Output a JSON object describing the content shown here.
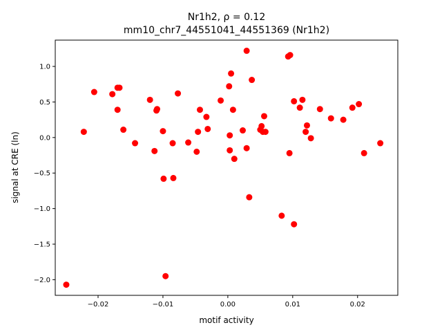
{
  "chart_data": {
    "type": "scatter",
    "title_line1": "Nr1h2, ρ = 0.12",
    "title_line2": "mm10_chr7_44551041_44551369 (Nr1h2)",
    "xlabel": "motif activity",
    "ylabel": "signal at CRE (ln)",
    "xlim": [
      -0.0266,
      0.0262
    ],
    "ylim": [
      -2.22,
      1.37
    ],
    "xticks": [
      -0.02,
      -0.01,
      0.0,
      0.01,
      0.02
    ],
    "xtick_labels": [
      "−0.02",
      "−0.01",
      "0.00",
      "0.01",
      "0.02"
    ],
    "yticks": [
      -2.0,
      -1.5,
      -1.0,
      -0.5,
      0.0,
      0.5,
      1.0
    ],
    "ytick_labels": [
      "−2.0",
      "−1.5",
      "−1.0",
      "−0.5",
      "0.0",
      "0.5",
      "1.0"
    ],
    "grid": false,
    "marker_color": "#ff0000",
    "points": [
      {
        "x": -0.0249,
        "y": -2.07
      },
      {
        "x": -0.0222,
        "y": 0.08
      },
      {
        "x": -0.0206,
        "y": 0.64
      },
      {
        "x": -0.0178,
        "y": 0.61
      },
      {
        "x": -0.017,
        "y": 0.7
      },
      {
        "x": -0.0167,
        "y": 0.7
      },
      {
        "x": -0.017,
        "y": 0.39
      },
      {
        "x": -0.0161,
        "y": 0.11
      },
      {
        "x": -0.0143,
        "y": -0.08
      },
      {
        "x": -0.012,
        "y": 0.53
      },
      {
        "x": -0.0113,
        "y": -0.19
      },
      {
        "x": -0.011,
        "y": 0.38
      },
      {
        "x": -0.0109,
        "y": 0.4
      },
      {
        "x": -0.01,
        "y": 0.09
      },
      {
        "x": -0.0099,
        "y": -0.58
      },
      {
        "x": -0.0096,
        "y": -1.95
      },
      {
        "x": -0.0085,
        "y": -0.08
      },
      {
        "x": -0.0084,
        "y": -0.57
      },
      {
        "x": -0.0077,
        "y": 0.62
      },
      {
        "x": -0.0061,
        "y": -0.07
      },
      {
        "x": -0.0048,
        "y": -0.2
      },
      {
        "x": -0.0046,
        "y": 0.08
      },
      {
        "x": -0.0043,
        "y": 0.39
      },
      {
        "x": -0.0033,
        "y": 0.29
      },
      {
        "x": -0.0031,
        "y": 0.12
      },
      {
        "x": -0.0011,
        "y": 0.52
      },
      {
        "x": 0.0002,
        "y": 0.72
      },
      {
        "x": 0.0003,
        "y": 0.03
      },
      {
        "x": 0.0003,
        "y": -0.18
      },
      {
        "x": 0.0005,
        "y": 0.9
      },
      {
        "x": 0.0008,
        "y": 0.39
      },
      {
        "x": 0.001,
        "y": -0.3
      },
      {
        "x": 0.0023,
        "y": 0.1
      },
      {
        "x": 0.0029,
        "y": 1.22
      },
      {
        "x": 0.0029,
        "y": -0.15
      },
      {
        "x": 0.0033,
        "y": -0.84
      },
      {
        "x": 0.0037,
        "y": 0.81
      },
      {
        "x": 0.005,
        "y": 0.11
      },
      {
        "x": 0.0052,
        "y": 0.16
      },
      {
        "x": 0.0054,
        "y": 0.08
      },
      {
        "x": 0.0056,
        "y": 0.3
      },
      {
        "x": 0.0058,
        "y": 0.08
      },
      {
        "x": 0.0083,
        "y": -1.1
      },
      {
        "x": 0.0093,
        "y": 1.14
      },
      {
        "x": 0.0096,
        "y": 1.16
      },
      {
        "x": 0.0095,
        "y": -0.22
      },
      {
        "x": 0.0102,
        "y": 0.51
      },
      {
        "x": 0.0102,
        "y": -1.22
      },
      {
        "x": 0.0111,
        "y": 0.42
      },
      {
        "x": 0.0115,
        "y": 0.53
      },
      {
        "x": 0.012,
        "y": 0.08
      },
      {
        "x": 0.0122,
        "y": 0.17
      },
      {
        "x": 0.0128,
        "y": -0.01
      },
      {
        "x": 0.0142,
        "y": 0.4
      },
      {
        "x": 0.0159,
        "y": 0.27
      },
      {
        "x": 0.0178,
        "y": 0.25
      },
      {
        "x": 0.0192,
        "y": 0.42
      },
      {
        "x": 0.0202,
        "y": 0.47
      },
      {
        "x": 0.021,
        "y": -0.22
      },
      {
        "x": 0.0235,
        "y": -0.08
      }
    ]
  }
}
